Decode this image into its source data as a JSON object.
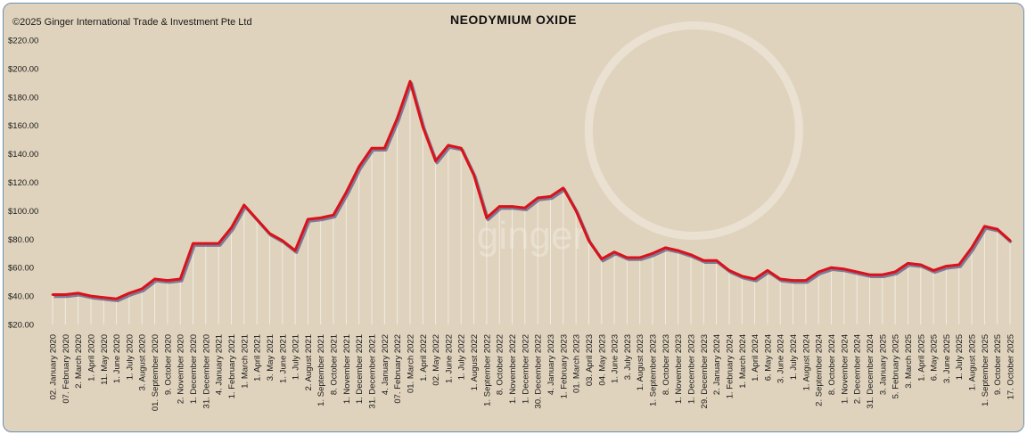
{
  "copyright": "©2025 Ginger International Trade & Investment Pte Ltd",
  "watermark": "ginger",
  "colors": {
    "line": "#d9121b",
    "shadow": "#3d3d7a",
    "background": "#e0d3bd",
    "drop": "#f3eee4"
  },
  "chart_data": {
    "type": "line",
    "title": "NEODYMIUM OXIDE",
    "ylim": [
      20,
      220
    ],
    "y_ticks": [
      "$20.00",
      "$40.00",
      "$60.00",
      "$80.00",
      "$100.00",
      "$120.00",
      "$140.00",
      "$160.00",
      "$180.00",
      "$200.00",
      "$220.00"
    ],
    "grid": false,
    "drop_lines": true,
    "labeled_categories": [
      "02. January 2020",
      "07. February 2020",
      "2. March 2020",
      "1. April 2020",
      "11. May 2020",
      "1. June 2020",
      "1. July 2020",
      "3. August 2020",
      "01. September 2020",
      "9. October 2020",
      "2. November 2020",
      "1. December 2020",
      "31. December 2020",
      "4. January 2021",
      "1. February 2021",
      "1. March 2021",
      "1. April 2021",
      "3. May 2021",
      "1. June 2021",
      "1. July 2021",
      "2. August 2021",
      "1. September 2021",
      "8. October 2021",
      "1. November 2021",
      "1. December 2021",
      "31. December 2021",
      "4. January 2022",
      "07. February 2022",
      "01. March 2022",
      "1. April 2022",
      "02. May 2022",
      "1. June 2022",
      "1. July 2022",
      "1. August 2022",
      "1. September 2022",
      "8. October 2022",
      "1. November 2022",
      "1. December 2022",
      "30. December 2022",
      "4. January 2023",
      "1. February 2023",
      "01. March 2023",
      "03. April 2023",
      "04. May 2023",
      "1. June 2023",
      "3. July 2023",
      "1. August 2023",
      "1. September 2023",
      "8. October 2023",
      "1. November 2023",
      "1. December 2023",
      "29. December 2023",
      "2. January 2024",
      "1. February 2024",
      "1. March 2024",
      "1. April 2024",
      "6. May 2024",
      "3. June 2024",
      "1. July 2024",
      "1. August 2024",
      "2. September 2024",
      "8. October 2024",
      "1. November 2024",
      "2. December 2024",
      "31. December 2024",
      "3. January 2025",
      "5. February 2025",
      "3. March 2025",
      "1. April 2025",
      "6. May 2025",
      "3. June 2025",
      "1. July 2025",
      "1. August 2025",
      "1. September 2025",
      "9. October 2025",
      "17. October 2025"
    ],
    "values": [
      41,
      41,
      42,
      40,
      39,
      38,
      42,
      45,
      52,
      51,
      52,
      77,
      77,
      77,
      88,
      104,
      94,
      84,
      79,
      72,
      94,
      95,
      97,
      113,
      131,
      144,
      144,
      165,
      191,
      159,
      135,
      146,
      144,
      125,
      95,
      103,
      103,
      102,
      109,
      110,
      116,
      100,
      79,
      66,
      71,
      67,
      67,
      70,
      74,
      72,
      69,
      65,
      65,
      58,
      54,
      52,
      58,
      52,
      51,
      51,
      57,
      60,
      59,
      57,
      55,
      55,
      57,
      63,
      62,
      58,
      61,
      62,
      74,
      89,
      87,
      79
    ]
  }
}
